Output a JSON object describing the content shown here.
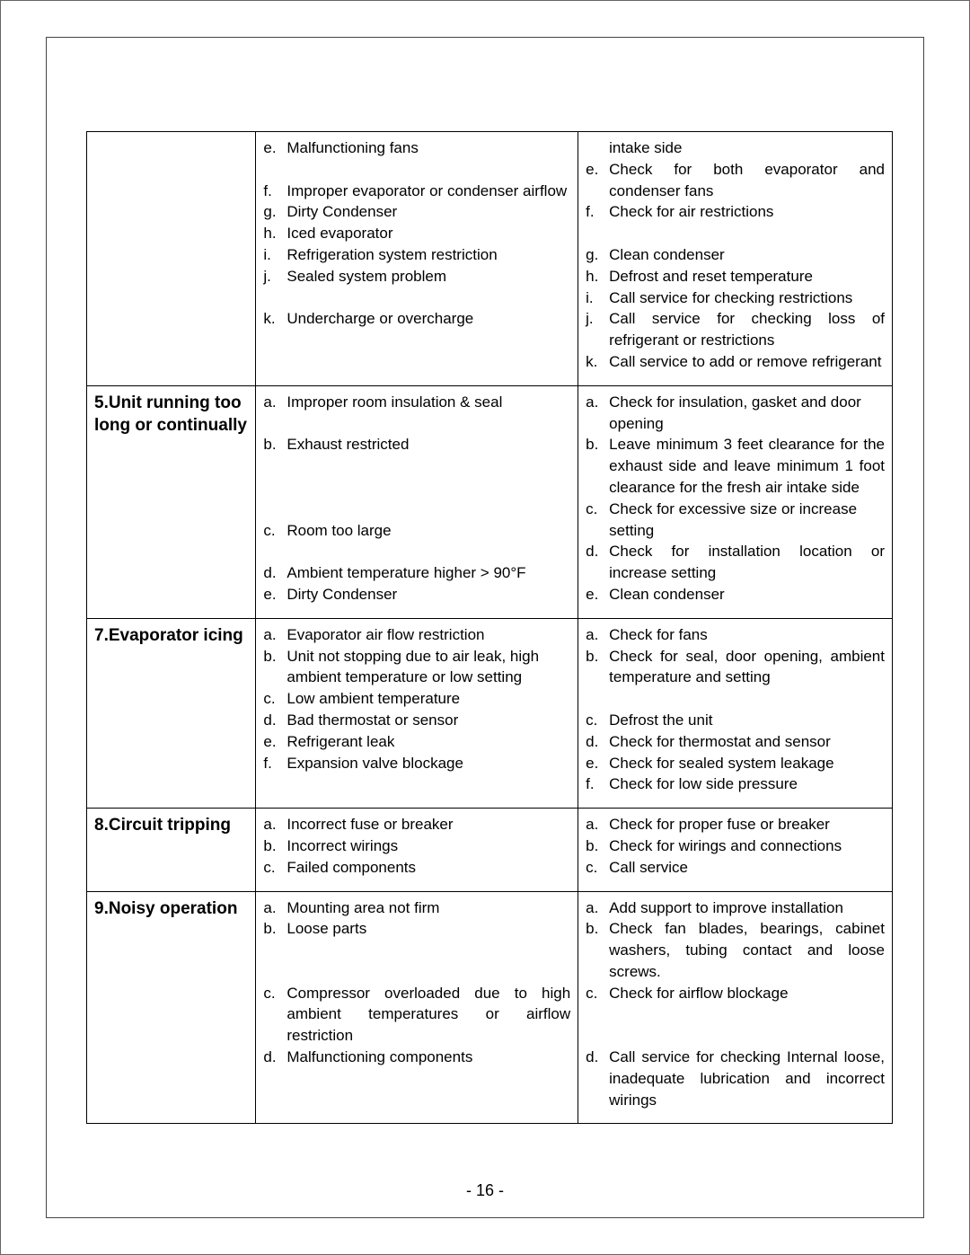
{
  "page_number": "- 16 -",
  "rows": [
    {
      "issue": "",
      "causes": [
        {
          "m": "e.",
          "t": "Malfunctioning fans"
        },
        {
          "m": "",
          "t": ""
        },
        {
          "m": "f.",
          "t": "Improper evaporator or condenser airflow",
          "justify": true
        },
        {
          "m": "g.",
          "t": "Dirty Condenser"
        },
        {
          "m": "h.",
          "t": "Iced evaporator"
        },
        {
          "m": "i.",
          "t": "Refrigeration system restriction"
        },
        {
          "m": "j.",
          "t": "Sealed system problem"
        },
        {
          "m": "",
          "t": ""
        },
        {
          "m": "k.",
          "t": "Undercharge or overcharge"
        }
      ],
      "actions": [
        {
          "m": "",
          "t": "intake side",
          "indent": true
        },
        {
          "m": "e.",
          "t": "Check for both evaporator and condenser fans",
          "justify": true
        },
        {
          "m": "f.",
          "t": "Check for air restrictions"
        },
        {
          "m": "",
          "t": ""
        },
        {
          "m": "g.",
          "t": "Clean condenser"
        },
        {
          "m": "h.",
          "t": "Defrost and reset temperature"
        },
        {
          "m": "i.",
          "t": "Call service for checking restrictions"
        },
        {
          "m": "j.",
          "t": "Call service for checking loss of refrigerant or restrictions",
          "justify": true
        },
        {
          "m": "k.",
          "t": "Call service to add or remove refrigerant",
          "justify": true
        }
      ]
    },
    {
      "issue": "5.Unit running too long or continually",
      "causes": [
        {
          "m": "a.",
          "t": "Improper room insulation & seal"
        },
        {
          "m": "",
          "t": ""
        },
        {
          "m": "b.",
          "t": "Exhaust restricted"
        },
        {
          "m": "",
          "t": ""
        },
        {
          "m": "",
          "t": ""
        },
        {
          "m": "",
          "t": ""
        },
        {
          "m": "c.",
          "t": "Room too large"
        },
        {
          "m": "",
          "t": ""
        },
        {
          "m": "d.",
          "t": "Ambient temperature higher > 90°F",
          "justify": true
        },
        {
          "m": "e.",
          "t": "Dirty Condenser"
        }
      ],
      "actions": [
        {
          "m": "a.",
          "t": "Check for insulation, gasket and door opening"
        },
        {
          "m": "b.",
          "t": "Leave minimum 3 feet clearance for the exhaust side and leave minimum 1 foot clearance for the fresh air intake side",
          "justify": true
        },
        {
          "m": "c.",
          "t": "Check for excessive size or increase setting"
        },
        {
          "m": "d.",
          "t": "Check for installation location or increase setting",
          "justify": true
        },
        {
          "m": "e.",
          "t": "Clean condenser"
        }
      ]
    },
    {
      "issue": "7.Evaporator icing",
      "causes": [
        {
          "m": "a.",
          "t": "Evaporator air flow restriction"
        },
        {
          "m": "b.",
          "t": "Unit not stopping due to air leak, high ambient temperature or low setting"
        },
        {
          "m": "c.",
          "t": "Low ambient temperature"
        },
        {
          "m": "d.",
          "t": "Bad thermostat or sensor"
        },
        {
          "m": "e.",
          "t": "Refrigerant leak"
        },
        {
          "m": "f.",
          "t": "Expansion valve blockage"
        }
      ],
      "actions": [
        {
          "m": "a.",
          "t": "Check for fans"
        },
        {
          "m": "b.",
          "t": "Check for seal, door opening, ambient temperature and setting",
          "justify": true
        },
        {
          "m": "",
          "t": ""
        },
        {
          "m": "c.",
          "t": "Defrost the unit"
        },
        {
          "m": "d.",
          "t": "Check for thermostat and sensor"
        },
        {
          "m": "e.",
          "t": "Check for sealed system leakage"
        },
        {
          "m": "f.",
          "t": "Check for low side pressure"
        }
      ]
    },
    {
      "issue": "8.Circuit tripping",
      "causes": [
        {
          "m": "a.",
          "t": "Incorrect fuse or breaker"
        },
        {
          "m": "b.",
          "t": "Incorrect wirings"
        },
        {
          "m": "c.",
          "t": "Failed components"
        }
      ],
      "actions": [
        {
          "m": "a.",
          "t": "Check for proper fuse or breaker"
        },
        {
          "m": "b.",
          "t": "Check for wirings and connections"
        },
        {
          "m": "c.",
          "t": "Call service"
        }
      ]
    },
    {
      "issue": "9.Noisy operation",
      "causes": [
        {
          "m": "a.",
          "t": "Mounting area not firm"
        },
        {
          "m": "b.",
          "t": "Loose parts"
        },
        {
          "m": "",
          "t": ""
        },
        {
          "m": "",
          "t": ""
        },
        {
          "m": "c.",
          "t": "Compressor overloaded due to high ambient temperatures or airflow restriction",
          "justify": true
        },
        {
          "m": "d.",
          "t": "Malfunctioning components"
        }
      ],
      "actions": [
        {
          "m": "a.",
          "t": "Add support to improve installation"
        },
        {
          "m": "b.",
          "t": "Check fan blades, bearings, cabinet washers, tubing contact and loose screws.",
          "justify": true
        },
        {
          "m": "c.",
          "t": "Check for airflow blockage"
        },
        {
          "m": "",
          "t": ""
        },
        {
          "m": "",
          "t": ""
        },
        {
          "m": "d.",
          "t": "Call service for checking Internal loose, inadequate lubrication and incorrect wirings",
          "justify": true
        }
      ]
    }
  ]
}
